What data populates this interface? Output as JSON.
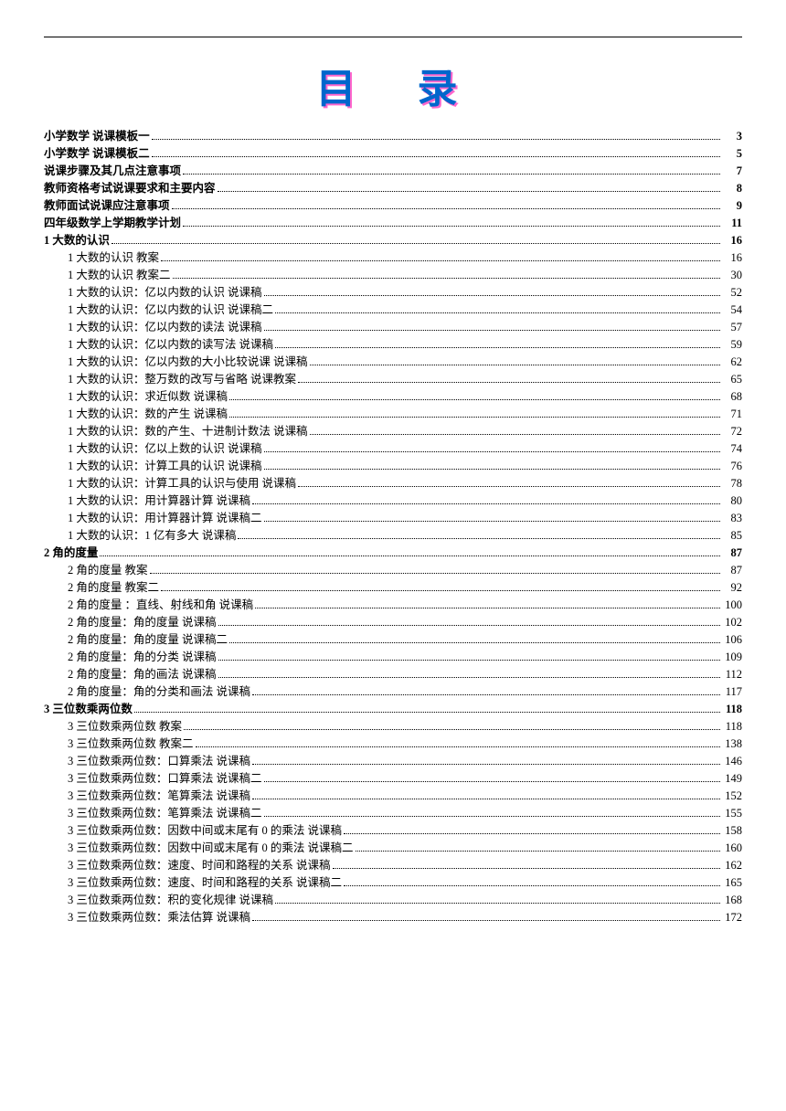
{
  "title": "目 录",
  "title_color": "#0066cc",
  "title_shadow": "#ff66cc",
  "title_fontsize": 44,
  "body_fontsize": 12.5,
  "background_color": "#ffffff",
  "text_color": "#000000",
  "leader_style": "dotted",
  "entries": [
    {
      "level": 0,
      "bold": true,
      "label": "小学数学  说课模板一",
      "page": "3"
    },
    {
      "level": 0,
      "bold": true,
      "label": "小学数学  说课模板二",
      "page": "5"
    },
    {
      "level": 0,
      "bold": true,
      "label": "说课步骤及其几点注意事项",
      "page": "7"
    },
    {
      "level": 0,
      "bold": true,
      "label": "教师资格考试说课要求和主要内容",
      "page": "8"
    },
    {
      "level": 0,
      "bold": true,
      "label": "教师面试说课应注意事项",
      "page": "9"
    },
    {
      "level": 0,
      "bold": true,
      "label": "四年级数学上学期教学计划",
      "page": "11"
    },
    {
      "level": 0,
      "bold": true,
      "label": "1  大数的认识",
      "page": "16"
    },
    {
      "level": 1,
      "bold": false,
      "label": "1  大数的认识  教案",
      "page": "16"
    },
    {
      "level": 1,
      "bold": false,
      "label": "1  大数的认识  教案二",
      "page": "30"
    },
    {
      "level": 1,
      "bold": false,
      "label": "1  大数的认识：亿以内数的认识      说课稿",
      "page": "52"
    },
    {
      "level": 1,
      "bold": false,
      "label": "1  大数的认识：亿以内数的认识      说课稿二",
      "page": "54"
    },
    {
      "level": 1,
      "bold": false,
      "label": "1  大数的认识：亿以内数的读法      说课稿",
      "page": "57"
    },
    {
      "level": 1,
      "bold": false,
      "label": "1  大数的认识：亿以内数的读写法      说课稿",
      "page": "59"
    },
    {
      "level": 1,
      "bold": false,
      "label": "1  大数的认识：亿以内数的大小比较说课      说课稿",
      "page": "62"
    },
    {
      "level": 1,
      "bold": false,
      "label": "1  大数的认识：整万数的改写与省略    说课教案",
      "page": "65"
    },
    {
      "level": 1,
      "bold": false,
      "label": "1  大数的认识：求近似数    说课稿",
      "page": "68"
    },
    {
      "level": 1,
      "bold": false,
      "label": "1  大数的认识：数的产生      说课稿",
      "page": "71"
    },
    {
      "level": 1,
      "bold": false,
      "label": "1  大数的认识：数的产生、十进制计数法    说课稿",
      "page": "72"
    },
    {
      "level": 1,
      "bold": false,
      "label": "1  大数的认识：亿以上数的认识      说课稿",
      "page": "74"
    },
    {
      "level": 1,
      "bold": false,
      "label": "1  大数的认识：计算工具的认识  说课稿",
      "page": "76"
    },
    {
      "level": 1,
      "bold": false,
      "label": "1  大数的认识：计算工具的认识与使用      说课稿",
      "page": "78"
    },
    {
      "level": 1,
      "bold": false,
      "label": "1  大数的认识：用计算器计算    说课稿",
      "page": "80"
    },
    {
      "level": 1,
      "bold": false,
      "label": "1  大数的认识：用计算器计算    说课稿二",
      "page": "83"
    },
    {
      "level": 1,
      "bold": false,
      "label": "1  大数的认识：1 亿有多大    说课稿",
      "page": "85"
    },
    {
      "level": 0,
      "bold": true,
      "label": "2  角的度量",
      "page": "87"
    },
    {
      "level": 1,
      "bold": false,
      "label": "2  角的度量  教案",
      "page": "87"
    },
    {
      "level": 1,
      "bold": false,
      "label": "2  角的度量  教案二",
      "page": "92"
    },
    {
      "level": 1,
      "bold": false,
      "label": "2  角的度量  ：直线、射线和角    说课稿",
      "page": "100"
    },
    {
      "level": 1,
      "bold": false,
      "label": "2  角的度量：角的度量    说课稿",
      "page": "102"
    },
    {
      "level": 1,
      "bold": false,
      "label": "2  角的度量：角的度量    说课稿二",
      "page": "106"
    },
    {
      "level": 1,
      "bold": false,
      "label": "2  角的度量：角的分类    说课稿",
      "page": "109"
    },
    {
      "level": 1,
      "bold": false,
      "label": "2  角的度量：角的画法    说课稿",
      "page": "112"
    },
    {
      "level": 1,
      "bold": false,
      "label": "2  角的度量：角的分类和画法    说课稿",
      "page": "117"
    },
    {
      "level": 0,
      "bold": true,
      "label": "3  三位数乘两位数",
      "page": "118"
    },
    {
      "level": 1,
      "bold": false,
      "label": "3  三位数乘两位数  教案",
      "page": "118"
    },
    {
      "level": 1,
      "bold": false,
      "label": "3  三位数乘两位数  教案二",
      "page": "138"
    },
    {
      "level": 1,
      "bold": false,
      "label": "3  三位数乘两位数：口算乘法  说课稿",
      "page": "146"
    },
    {
      "level": 1,
      "bold": false,
      "label": "3  三位数乘两位数：口算乘法  说课稿二",
      "page": "149"
    },
    {
      "level": 1,
      "bold": false,
      "label": "3  三位数乘两位数：笔算乘法  说课稿",
      "page": "152"
    },
    {
      "level": 1,
      "bold": false,
      "label": "3  三位数乘两位数：笔算乘法  说课稿二",
      "page": "155"
    },
    {
      "level": 1,
      "bold": false,
      "label": "3  三位数乘两位数：因数中间或末尾有 0 的乘法  说课稿",
      "page": "158"
    },
    {
      "level": 1,
      "bold": false,
      "label": "3  三位数乘两位数：因数中间或末尾有 0 的乘法  说课稿二",
      "page": "160"
    },
    {
      "level": 1,
      "bold": false,
      "label": "3  三位数乘两位数：速度、时间和路程的关系  说课稿",
      "page": "162"
    },
    {
      "level": 1,
      "bold": false,
      "label": "3  三位数乘两位数：速度、时间和路程的关系  说课稿二",
      "page": "165"
    },
    {
      "level": 1,
      "bold": false,
      "label": "3  三位数乘两位数：积的变化规律  说课稿",
      "page": "168"
    },
    {
      "level": 1,
      "bold": false,
      "label": "3  三位数乘两位数：乘法估算  说课稿",
      "page": "172"
    }
  ]
}
